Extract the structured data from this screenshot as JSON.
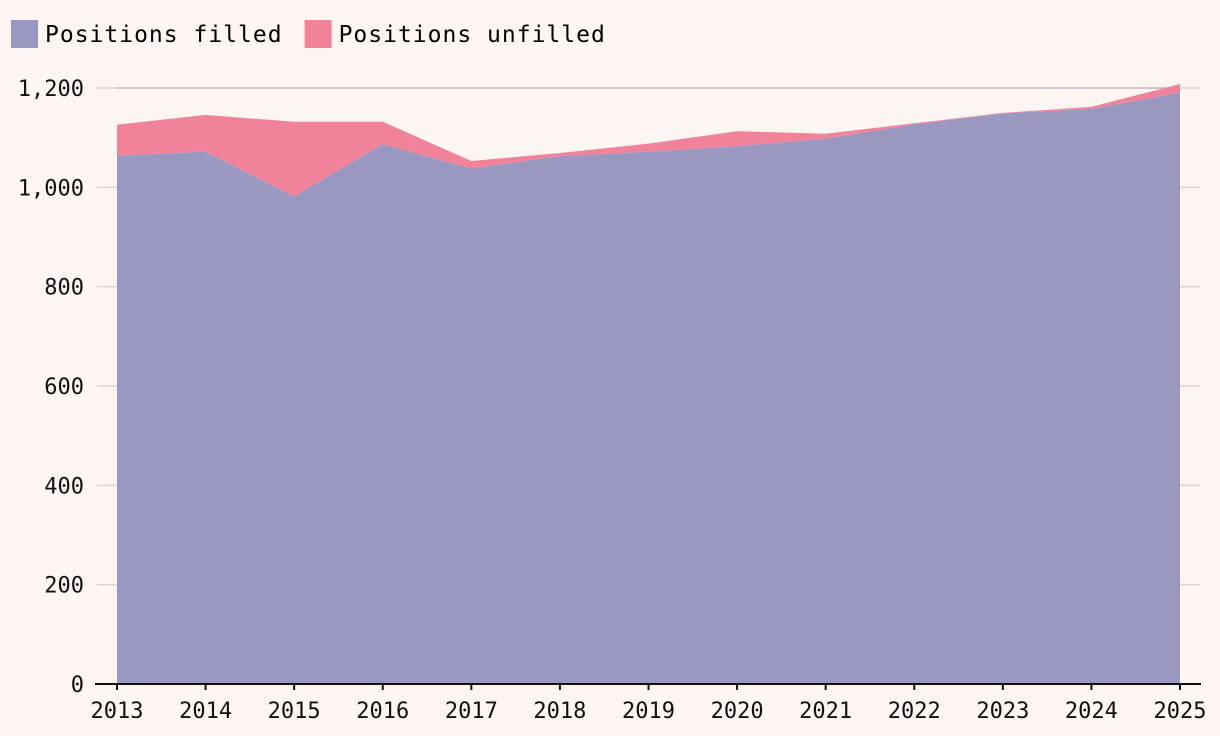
{
  "chart_data": {
    "type": "area",
    "stacked": true,
    "x": [
      "2013",
      "2014",
      "2015",
      "2016",
      "2017",
      "2018",
      "2019",
      "2020",
      "2021",
      "2022",
      "2023",
      "2024",
      "2025"
    ],
    "series": [
      {
        "name": "Positions filled",
        "color": "#9a98c1",
        "values": [
          1064,
          1072,
          982,
          1087,
          1038,
          1063,
          1072,
          1083,
          1098,
          1127,
          1149,
          1158,
          1191
        ]
      },
      {
        "name": "Positions unfilled",
        "color": "#f08399",
        "values": [
          62,
          74,
          150,
          45,
          15,
          6,
          16,
          30,
          10,
          2,
          1,
          4,
          17
        ]
      }
    ],
    "ylim": [
      0,
      1200
    ],
    "yticks": [
      0,
      200,
      400,
      600,
      800,
      1000,
      1200
    ],
    "ytick_labels": [
      "0",
      "200",
      "400",
      "600",
      "800",
      "1,000",
      "1,200"
    ],
    "grid": true,
    "legend_position": "top-left",
    "title": "",
    "xlabel": "",
    "ylabel": ""
  }
}
